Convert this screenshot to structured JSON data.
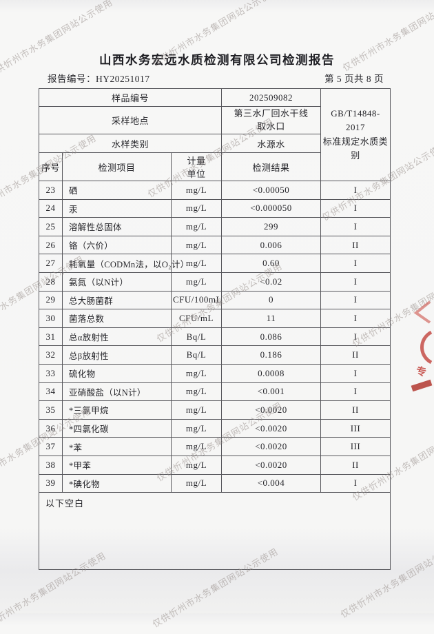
{
  "document": {
    "title": "山西水务宏远水质检测有限公司检测报告",
    "report_no_label": "报告编号：",
    "report_no": "HY20251017",
    "page_indicator": "第 5 页共 8 页",
    "below_blank_note": "以下空白",
    "watermark_text": "仅供忻州市水务集团网站公示使用",
    "seal": {
      "char": "专",
      "color": "#c2423c"
    }
  },
  "sample_info": {
    "sample_no_label": "样品编号",
    "sample_no": "202509082",
    "location_label": "采样地点",
    "location": "第三水厂回水干线取水口",
    "category_label": "水样类别",
    "category": "水源水",
    "standard_line1": "GB/T14848-2017",
    "standard_line2": "标准规定水质类别"
  },
  "results_table": {
    "col_no": "序号",
    "col_item": "检测项目",
    "col_unit_line1": "计量",
    "col_unit_line2": "单位",
    "col_result": "检测结果",
    "rows": [
      {
        "no": "23",
        "item": "硒",
        "unit": "mg/L",
        "result": "<0.00050",
        "class": "I"
      },
      {
        "no": "24",
        "item": "汞",
        "unit": "mg/L",
        "result": "<0.000050",
        "class": "I"
      },
      {
        "no": "25",
        "item": "溶解性总固体",
        "unit": "mg/L",
        "result": "299",
        "class": "I"
      },
      {
        "no": "26",
        "item": "铬（六价）",
        "unit": "mg/L",
        "result": "0.006",
        "class": "II"
      },
      {
        "no": "27",
        "item": "耗氧量（CODMn法，以O₂计）",
        "unit": "mg/L",
        "result": "0.60",
        "class": "I"
      },
      {
        "no": "28",
        "item": "氨氮（以N计）",
        "unit": "mg/L",
        "result": "<0.02",
        "class": "I"
      },
      {
        "no": "29",
        "item": "总大肠菌群",
        "unit": "CFU/100mL",
        "result": "0",
        "class": "I"
      },
      {
        "no": "30",
        "item": "菌落总数",
        "unit": "CFU/mL",
        "result": "11",
        "class": "I"
      },
      {
        "no": "31",
        "item": "总α放射性",
        "unit": "Bq/L",
        "result": "0.086",
        "class": "I"
      },
      {
        "no": "32",
        "item": "总β放射性",
        "unit": "Bq/L",
        "result": "0.186",
        "class": "II"
      },
      {
        "no": "33",
        "item": "硫化物",
        "unit": "mg/L",
        "result": "0.0008",
        "class": "I"
      },
      {
        "no": "34",
        "item": "亚硝酸盐（以N计）",
        "unit": "mg/L",
        "result": "<0.001",
        "class": "I"
      },
      {
        "no": "35",
        "item": "*三氯甲烷",
        "unit": "mg/L",
        "result": "<0.0020",
        "class": "II"
      },
      {
        "no": "36",
        "item": "*四氯化碳",
        "unit": "mg/L",
        "result": "<0.0020",
        "class": "III"
      },
      {
        "no": "37",
        "item": "*苯",
        "unit": "mg/L",
        "result": "<0.0020",
        "class": "III"
      },
      {
        "no": "38",
        "item": "*甲苯",
        "unit": "mg/L",
        "result": "<0.0020",
        "class": "II"
      },
      {
        "no": "39",
        "item": "*碘化物",
        "unit": "mg/L",
        "result": "<0.004",
        "class": "I"
      }
    ]
  }
}
